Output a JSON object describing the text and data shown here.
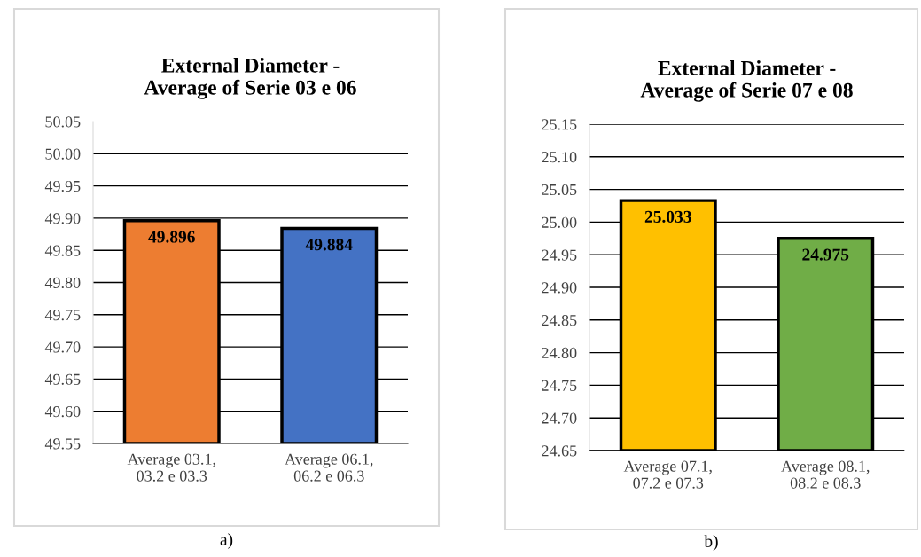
{
  "chart_data": [
    {
      "type": "bar",
      "title": "External Diameter -\nAverage of Serie 03 e 06",
      "categories": [
        "Average 03.1,\n03.2 e 03.3",
        "Average 06.1,\n06.2 e 06.3"
      ],
      "values": [
        49.896,
        49.884
      ],
      "colors": [
        "#ed7d31",
        "#4472c4"
      ],
      "data_labels": true,
      "grid": "y",
      "ylim": [
        49.55,
        50.05
      ],
      "yticks": [
        49.55,
        {
          "value": 49.6,
          "label": "49.60"
        },
        49.65,
        {
          "value": 49.7,
          "label": "49.70"
        },
        49.75,
        {
          "value": 49.8,
          "label": "49.80"
        },
        49.85,
        {
          "value": 49.9,
          "label": "49.90"
        },
        49.95,
        {
          "value": 50.0,
          "label": "50.00"
        },
        50.05
      ],
      "annotations": [
        "a)"
      ]
    },
    {
      "type": "bar",
      "title": "External Diameter -\nAverage of Serie 07 e 08",
      "categories": [
        "Average 07.1,\n07.2 e 07.3",
        "Average 08.1,\n08.2 e 08.3"
      ],
      "values": [
        25.033,
        24.975
      ],
      "colors": [
        "#ffc000",
        "#70ad47"
      ],
      "data_labels": true,
      "grid": "y",
      "ylim": [
        24.65,
        25.15
      ],
      "yticks": [
        24.65,
        {
          "value": 24.7,
          "label": "24.70"
        },
        24.75,
        {
          "value": 24.8,
          "label": "24.80"
        },
        24.85,
        {
          "value": 24.9,
          "label": "24.90"
        },
        24.95,
        {
          "value": 25.0,
          "label": "25.00"
        },
        25.05,
        {
          "value": 25.1,
          "label": "25.10"
        },
        25.15
      ],
      "annotations": [
        "b)"
      ]
    }
  ]
}
